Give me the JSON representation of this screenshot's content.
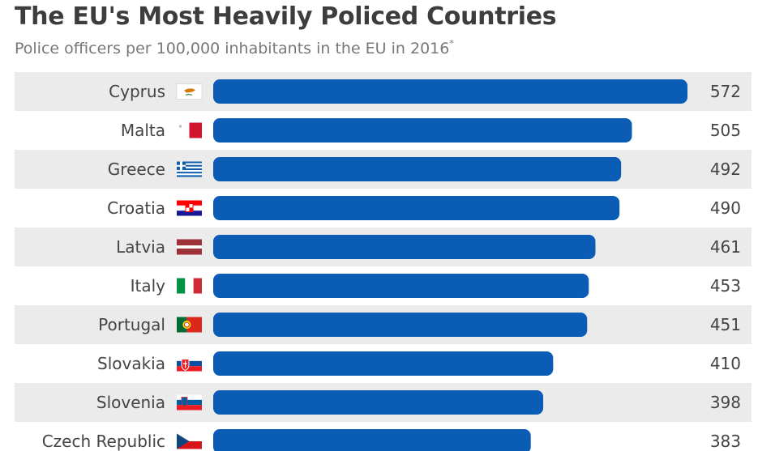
{
  "title": "The EU's Most Heavily Policed Countries",
  "subtitle": "Police officers per 100,000 inhabitants in the EU in 2016",
  "subtitle_mark": "*",
  "colors": {
    "bar": "#0b5cb5",
    "row_stripe": "#ebebeb",
    "label": "#444444",
    "value": "#444444"
  },
  "chart_data": {
    "type": "bar",
    "orientation": "horizontal",
    "title": "The EU's Most Heavily Policed Countries",
    "subtitle": "Police officers per 100,000 inhabitants in the EU in 2016*",
    "categories": [
      "Cyprus",
      "Malta",
      "Greece",
      "Croatia",
      "Latvia",
      "Italy",
      "Portugal",
      "Slovakia",
      "Slovenia",
      "Czech Republic"
    ],
    "values": [
      572,
      505,
      492,
      490,
      461,
      453,
      451,
      410,
      398,
      383
    ],
    "flag_icons": [
      "cyprus-flag-icon",
      "malta-flag-icon",
      "greece-flag-icon",
      "croatia-flag-icon",
      "latvia-flag-icon",
      "italy-flag-icon",
      "portugal-flag-icon",
      "slovakia-flag-icon",
      "slovenia-flag-icon",
      "czech-republic-flag-icon"
    ],
    "xlim": [
      0,
      572
    ],
    "grid": false,
    "legend": "none"
  }
}
